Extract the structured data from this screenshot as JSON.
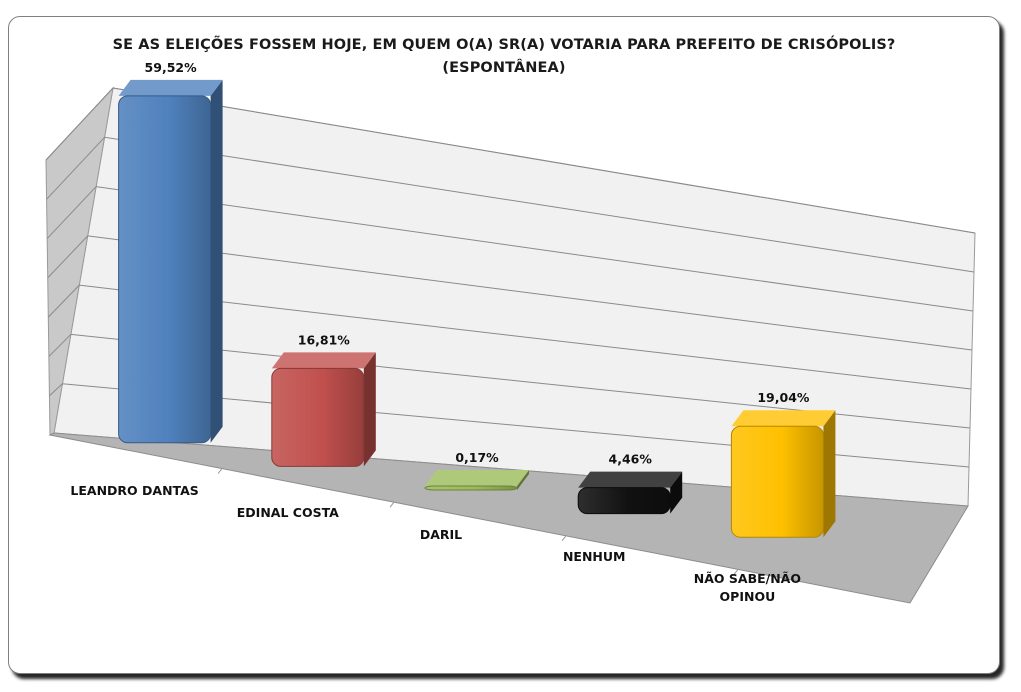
{
  "chart_data": {
    "type": "bar",
    "title_line1": "SE AS ELEIÇÕES FOSSEM HOJE, EM QUEM O(A) SR(A) VOTARIA PARA PREFEITO DE CRISÓPOLIS?",
    "title_line2": "(ESPONTÂNEA)",
    "categories": [
      "LEANDRO DANTAS",
      "EDINAL COSTA",
      "DARIL",
      "NENHUM",
      "NÃO SABE/NÃO OPINOU"
    ],
    "values": [
      59.52,
      16.81,
      0.17,
      4.46,
      19.04
    ],
    "data_labels": [
      "59,52%",
      "16,81%",
      "0,17%",
      "4,46%",
      "19,04%"
    ],
    "colors": [
      "#4f81bd",
      "#c0504d",
      "#9bbb59",
      "#111111",
      "#ffc000"
    ],
    "ylim": [
      0,
      70
    ],
    "grid": true,
    "style": "3d-perspective"
  }
}
